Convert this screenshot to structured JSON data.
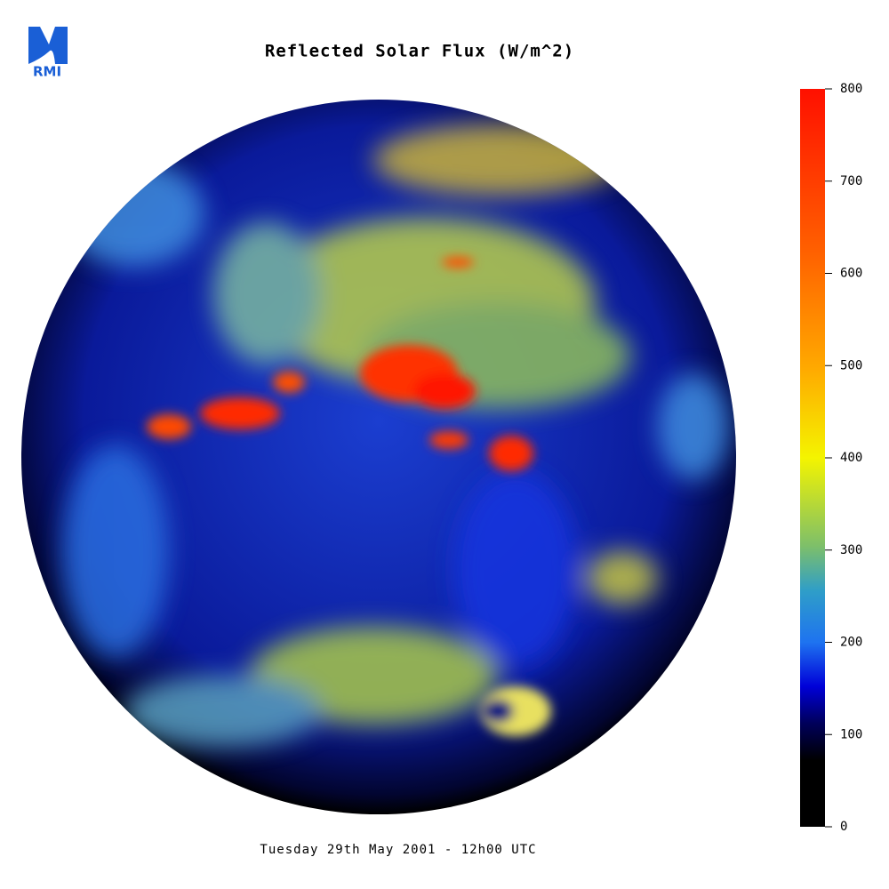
{
  "header": {
    "logo": "RMI",
    "title": "Reflected Solar Flux (W/m^2)"
  },
  "colorbar": {
    "range": [
      0,
      800
    ],
    "ticks": [
      0,
      100,
      200,
      300,
      400,
      500,
      600,
      700,
      800
    ]
  },
  "footer": "Tuesday 29th May 2001 - 12h00 UTC"
}
